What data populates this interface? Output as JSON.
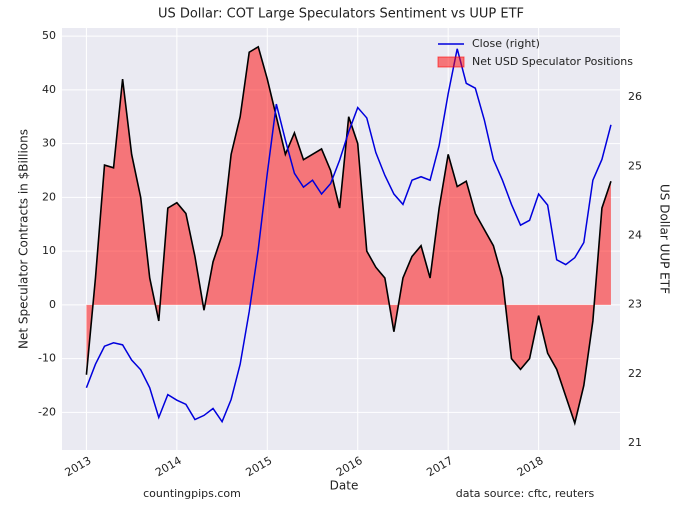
{
  "chart_data": {
    "type": "line",
    "title": "US Dollar: COT Large Speculators Sentiment vs UUP ETF",
    "xlabel": "Date",
    "ylabel": "Net Speculator Contracts in $Billions",
    "y2label": "US Dollar UUP ETF",
    "footer_left": "countingpips.com",
    "footer_right": "data source: cftc, reuters",
    "x": [
      2013.0,
      2013.1,
      2013.2,
      2013.3,
      2013.4,
      2013.5,
      2013.6,
      2013.7,
      2013.8,
      2013.9,
      2014.0,
      2014.1,
      2014.2,
      2014.3,
      2014.4,
      2014.5,
      2014.6,
      2014.7,
      2014.8,
      2014.9,
      2015.0,
      2015.1,
      2015.2,
      2015.3,
      2015.4,
      2015.5,
      2015.6,
      2015.7,
      2015.8,
      2015.9,
      2016.0,
      2016.1,
      2016.2,
      2016.3,
      2016.4,
      2016.5,
      2016.6,
      2016.7,
      2016.8,
      2016.9,
      2017.0,
      2017.1,
      2017.2,
      2017.3,
      2017.4,
      2017.5,
      2017.6,
      2017.7,
      2017.8,
      2017.9,
      2018.0,
      2018.1,
      2018.2,
      2018.3,
      2018.4,
      2018.5,
      2018.6,
      2018.7,
      2018.8
    ],
    "series": [
      {
        "name": "Close (right)",
        "type": "line",
        "axis": "y2",
        "color": "#0000dd",
        "values": [
          21.8,
          22.14,
          22.4,
          22.45,
          22.42,
          22.2,
          22.06,
          21.8,
          21.37,
          21.7,
          21.62,
          21.56,
          21.34,
          21.4,
          21.5,
          21.31,
          21.63,
          22.14,
          22.9,
          23.8,
          24.9,
          25.9,
          25.38,
          24.9,
          24.7,
          24.8,
          24.6,
          24.75,
          25.09,
          25.5,
          25.85,
          25.7,
          25.2,
          24.87,
          24.6,
          24.45,
          24.8,
          24.85,
          24.8,
          25.3,
          26.05,
          26.7,
          26.2,
          26.13,
          25.67,
          25.1,
          24.8,
          24.45,
          24.15,
          24.22,
          24.6,
          24.44,
          23.65,
          23.58,
          23.68,
          23.9,
          24.8,
          25.1,
          25.6
        ]
      },
      {
        "name": "Net USD Speculator Positions",
        "type": "area",
        "color": "#ff0000",
        "edgecolor": "#000000",
        "values": [
          -13,
          5,
          26,
          25.5,
          42,
          28,
          20,
          5,
          -3,
          18,
          19,
          17,
          9,
          -1,
          8,
          13,
          28,
          35,
          47,
          48,
          42,
          35,
          28,
          32,
          27,
          28,
          29,
          25,
          18,
          35,
          30,
          10,
          7,
          5,
          -5,
          5,
          9,
          11,
          5,
          18,
          28,
          22,
          23,
          17,
          14,
          11,
          5,
          -10,
          -12,
          -10,
          -2,
          -9,
          -12,
          -17,
          -22,
          -15,
          -3,
          18,
          23
        ]
      }
    ],
    "xlim": [
      2012.73,
      2018.9
    ],
    "xticks": [
      2013,
      2014,
      2015,
      2016,
      2017,
      2018
    ],
    "ylim": [
      -27,
      51.5
    ],
    "yticks": [
      -20,
      -10,
      0,
      10,
      20,
      30,
      40,
      50
    ],
    "y2lim": [
      20.9,
      27.0
    ],
    "y2ticks": [
      21,
      22,
      23,
      24,
      25,
      26
    ],
    "grid": true,
    "legend": "upper right"
  }
}
